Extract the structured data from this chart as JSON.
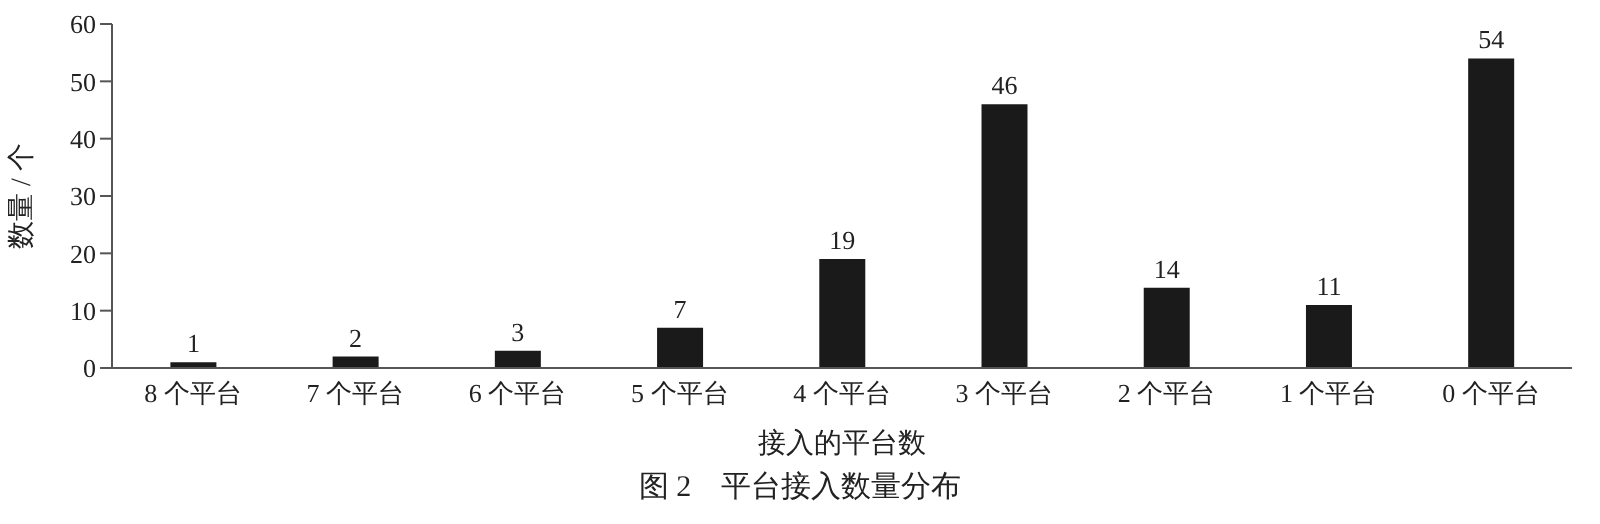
{
  "chart_data": {
    "type": "bar",
    "title": "图 2　平台接入数量分布",
    "xlabel": "接入的平台数",
    "ylabel": "数量 / 个",
    "categories": [
      "8 个平台",
      "7 个平台",
      "6 个平台",
      "5 个平台",
      "4 个平台",
      "3 个平台",
      "2 个平台",
      "1 个平台",
      "0 个平台"
    ],
    "values": [
      1,
      2,
      3,
      7,
      19,
      46,
      14,
      11,
      54
    ],
    "color": "#1a1a1a",
    "ylim": [
      0,
      60
    ],
    "yticks": [
      0,
      10,
      20,
      30,
      40,
      50,
      60
    ],
    "grid": false,
    "data_labels": true
  }
}
